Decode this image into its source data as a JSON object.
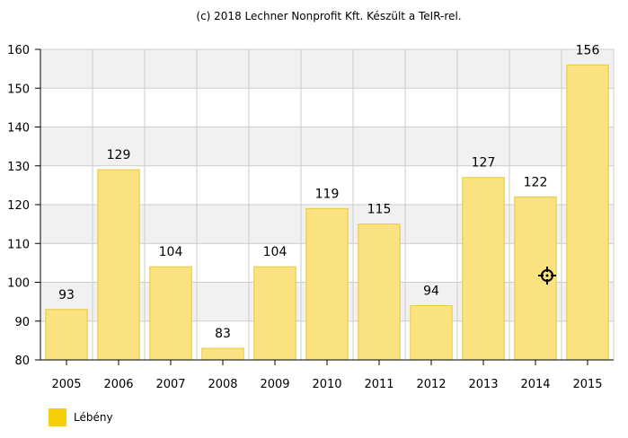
{
  "credit": "(c) 2018 Lechner Nonprofit Kft. Készült a TeIR-rel.",
  "colors": {
    "bar_fill": "#F9E27F",
    "bar_stroke": "#E9C93B",
    "legend_swatch": "#F6CF0B",
    "band": "#F1F1F1",
    "grid": "#CCCCCC",
    "axis": "#000000"
  },
  "chart_data": {
    "type": "bar",
    "categories": [
      "2005",
      "2006",
      "2007",
      "2008",
      "2009",
      "2010",
      "2011",
      "2012",
      "2013",
      "2014",
      "2015"
    ],
    "series": [
      {
        "name": "Lébény",
        "values": [
          93,
          129,
          104,
          83,
          104,
          119,
          115,
          94,
          127,
          122,
          156
        ]
      }
    ],
    "yticks": [
      80,
      90,
      100,
      110,
      120,
      130,
      140,
      150,
      160
    ],
    "ylim": [
      80,
      160
    ],
    "grid": true,
    "legend_position": "bottom-left",
    "title": "",
    "xlabel": "",
    "ylabel": ""
  },
  "icons": {
    "cursor": "crosshair-cursor-icon"
  }
}
